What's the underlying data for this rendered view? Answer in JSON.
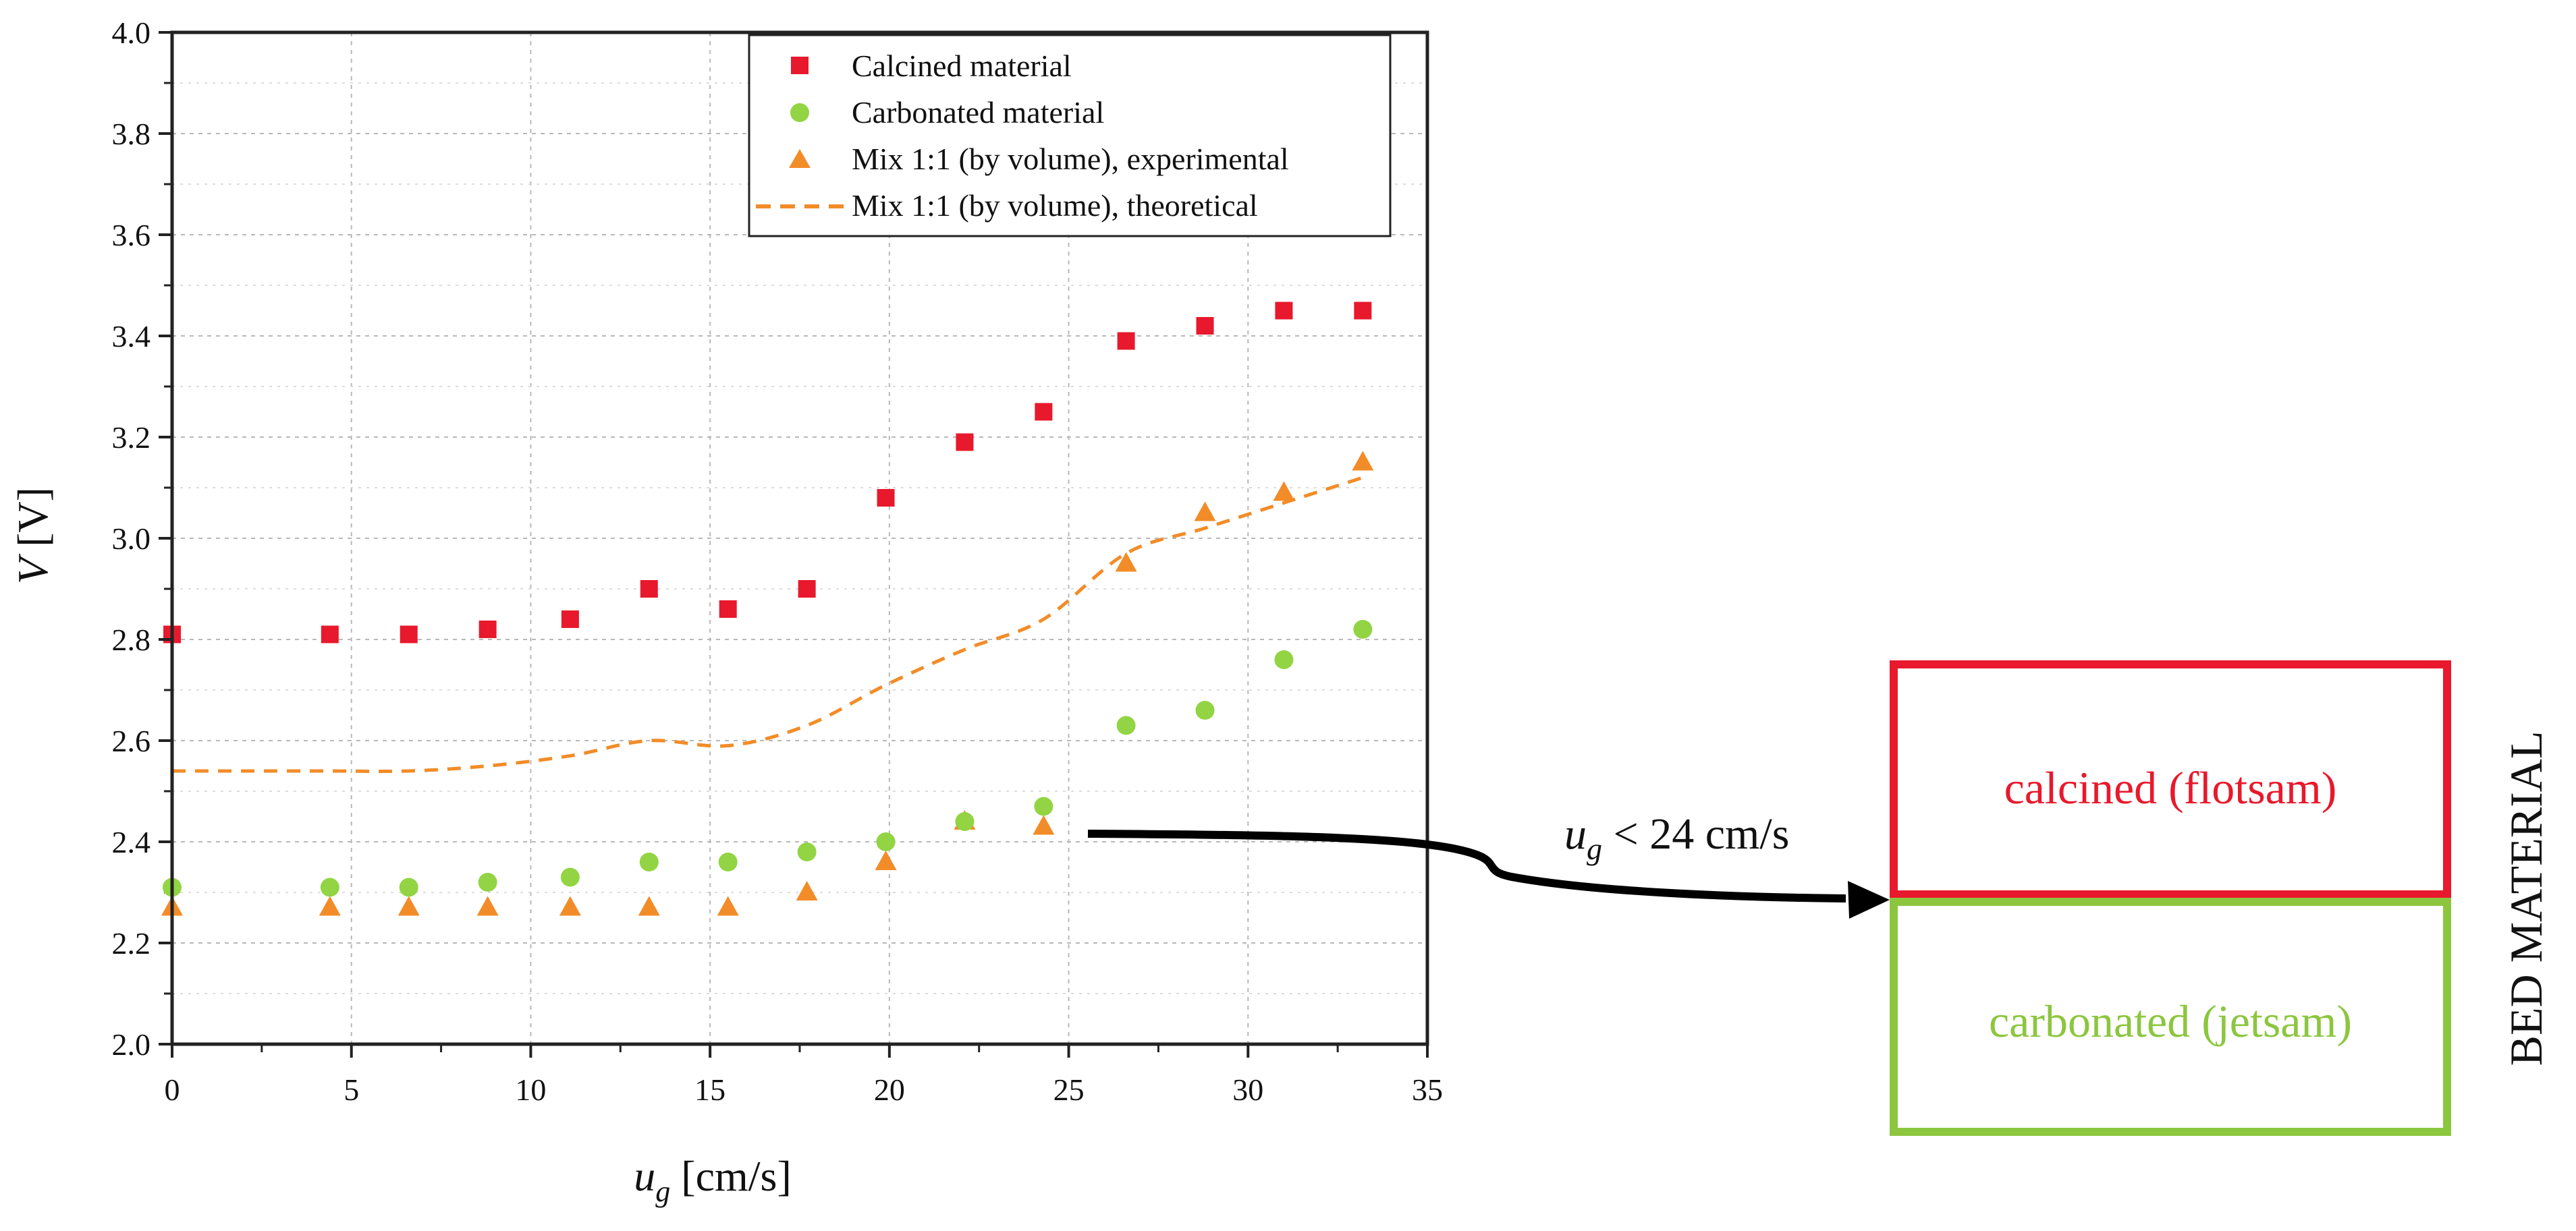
{
  "chart_data": {
    "type": "scatter",
    "xlabel": "u_g [cm/s]",
    "xlabel_parts": {
      "symbol": "u",
      "subscript": "g",
      "unit": " [cm/s]"
    },
    "ylabel": "V [V]",
    "ylabel_parts": {
      "symbol": "V",
      "unit": " [V]"
    },
    "xlim": [
      0,
      35
    ],
    "ylim": [
      2.0,
      4.0
    ],
    "xticks": [
      0,
      5,
      10,
      15,
      20,
      25,
      30,
      35
    ],
    "yticks": [
      2.0,
      2.2,
      2.4,
      2.6,
      2.8,
      3.0,
      3.2,
      3.4,
      3.6,
      3.8,
      4.0
    ],
    "xtick_labels": [
      "0",
      "5",
      "10",
      "15",
      "20",
      "25",
      "30",
      "35"
    ],
    "ytick_labels": [
      "2.0",
      "2.2",
      "2.4",
      "2.6",
      "2.8",
      "3.0",
      "3.2",
      "3.4",
      "3.6",
      "3.8",
      "4.0"
    ],
    "grid": true,
    "legend_position": "top-right",
    "series": [
      {
        "name": "Calcined material",
        "marker": "square",
        "color": "#e8192c",
        "x": [
          0,
          4.4,
          6.6,
          8.8,
          11.1,
          13.3,
          15.5,
          17.7,
          19.9,
          22.1,
          24.3,
          26.6,
          28.8,
          31.0,
          33.2
        ],
        "y": [
          2.81,
          2.81,
          2.81,
          2.82,
          2.84,
          2.9,
          2.86,
          2.9,
          3.08,
          3.19,
          3.25,
          3.39,
          3.42,
          3.45,
          3.45
        ]
      },
      {
        "name": "Carbonated material",
        "marker": "circle",
        "color": "#92d443",
        "x": [
          0,
          4.4,
          6.6,
          8.8,
          11.1,
          13.3,
          15.5,
          17.7,
          19.9,
          22.1,
          24.3,
          26.6,
          28.8,
          31.0,
          33.2
        ],
        "y": [
          2.31,
          2.31,
          2.31,
          2.32,
          2.33,
          2.36,
          2.36,
          2.38,
          2.4,
          2.44,
          2.47,
          2.63,
          2.66,
          2.76,
          2.82
        ]
      },
      {
        "name": "Mix 1:1 (by volume), experimental",
        "marker": "triangle",
        "color": "#f28c28",
        "x": [
          0,
          4.4,
          6.6,
          8.8,
          11.1,
          13.3,
          15.5,
          17.7,
          19.9,
          22.1,
          24.3,
          26.6,
          28.8,
          31.0,
          33.2
        ],
        "y": [
          2.27,
          2.27,
          2.27,
          2.27,
          2.27,
          2.27,
          2.27,
          2.3,
          2.36,
          2.44,
          2.43,
          2.95,
          3.05,
          3.09,
          3.15
        ]
      },
      {
        "name": "Mix 1:1 (by volume), theoretical",
        "marker": "dashed-line",
        "color": "#f28c28",
        "x": [
          0,
          2,
          4.4,
          6.6,
          8.8,
          11.1,
          13.3,
          15.5,
          17.7,
          19.9,
          22.1,
          24.3,
          26.6,
          28.8,
          31.0,
          33.2
        ],
        "y": [
          2.54,
          2.54,
          2.54,
          2.54,
          2.55,
          2.57,
          2.6,
          2.59,
          2.63,
          2.71,
          2.78,
          2.84,
          2.97,
          3.02,
          3.07,
          3.12
        ]
      }
    ]
  },
  "annotation": {
    "condition_symbol": "u",
    "condition_subscript": "g",
    "condition_rest": " < 24 cm/s",
    "arrow_color": "#000000"
  },
  "bed_material": {
    "title": "BED MATERIAL",
    "top_box_label": "calcined (flotsam)",
    "top_box_color": "#e8192c",
    "bottom_box_label": "carbonated (jetsam)",
    "bottom_box_color": "#8cc63f"
  }
}
